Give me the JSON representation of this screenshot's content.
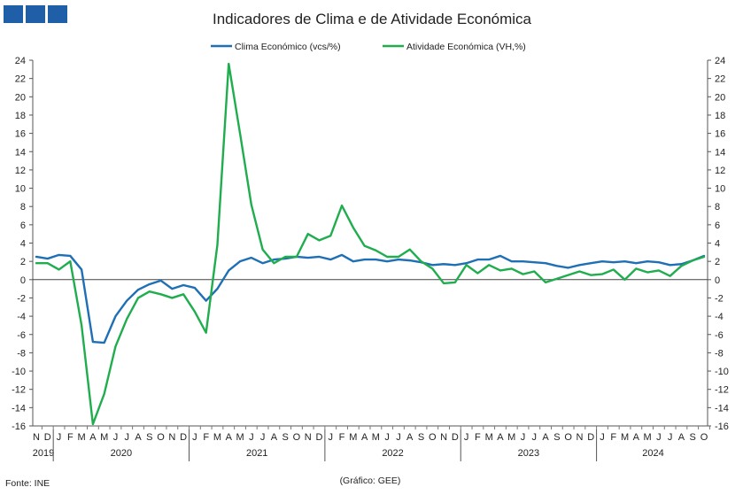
{
  "chart_data": {
    "type": "line",
    "title": "Indicadores de Clima e de Atividade Económica",
    "source": "Fonte: INE",
    "credit": "(Gráfico: GEE)",
    "ylim": [
      -16,
      24
    ],
    "yticks": [
      -16,
      -14,
      -12,
      -10,
      -8,
      -6,
      -4,
      -2,
      0,
      2,
      4,
      6,
      8,
      10,
      12,
      14,
      16,
      18,
      20,
      22,
      24
    ],
    "month_labels": [
      "N",
      "D",
      "J",
      "F",
      "M",
      "A",
      "M",
      "J",
      "J",
      "A",
      "S",
      "O",
      "N",
      "D",
      "J",
      "F",
      "M",
      "A",
      "M",
      "J",
      "J",
      "A",
      "S",
      "O",
      "N",
      "D",
      "J",
      "F",
      "M",
      "A",
      "M",
      "J",
      "J",
      "A",
      "S",
      "O",
      "N",
      "D",
      "J",
      "F",
      "M",
      "A",
      "M",
      "J",
      "J",
      "A",
      "S",
      "O",
      "N",
      "D",
      "J",
      "F",
      "M",
      "A",
      "M",
      "J",
      "J",
      "A",
      "S",
      "O"
    ],
    "years": [
      {
        "label": "2019",
        "start": 0,
        "end": 1
      },
      {
        "label": "2020",
        "start": 2,
        "end": 13
      },
      {
        "label": "2021",
        "start": 14,
        "end": 25
      },
      {
        "label": "2022",
        "start": 26,
        "end": 37
      },
      {
        "label": "2023",
        "start": 38,
        "end": 49
      },
      {
        "label": "2024",
        "start": 50,
        "end": 59
      }
    ],
    "series": [
      {
        "name": "Clima Económico (vcs/%)",
        "color": "#1f6fb5",
        "values": [
          2.5,
          2.3,
          2.7,
          2.6,
          1.1,
          -6.8,
          -6.9,
          -4.0,
          -2.3,
          -1.1,
          -0.5,
          -0.1,
          -1.0,
          -0.6,
          -0.9,
          -2.3,
          -1.0,
          1.0,
          2.0,
          2.4,
          1.8,
          2.2,
          2.3,
          2.5,
          2.4,
          2.5,
          2.2,
          2.7,
          2.0,
          2.2,
          2.2,
          2.0,
          2.2,
          2.1,
          1.9,
          1.6,
          1.7,
          1.6,
          1.8,
          2.2,
          2.2,
          2.6,
          2.0,
          2.0,
          1.9,
          1.8,
          1.5,
          1.3,
          1.6,
          1.8,
          2.0,
          1.9,
          2.0,
          1.8,
          2.0,
          1.9,
          1.6,
          1.7,
          2.1,
          2.6
        ]
      },
      {
        "name": "Atividade Económica (VH,%)",
        "color": "#1fad4e",
        "values": [
          1.8,
          1.8,
          1.1,
          2.0,
          -5.0,
          -15.8,
          -12.5,
          -7.3,
          -4.3,
          -2.0,
          -1.3,
          -1.6,
          -2.0,
          -1.6,
          -3.5,
          -5.8,
          3.8,
          23.6,
          16.0,
          8.2,
          3.3,
          1.8,
          2.5,
          2.5,
          5.0,
          4.3,
          4.8,
          8.1,
          5.7,
          3.7,
          3.2,
          2.5,
          2.5,
          3.3,
          2.0,
          1.2,
          -0.4,
          -0.3,
          1.6,
          0.7,
          1.6,
          1.0,
          1.2,
          0.6,
          0.9,
          -0.3,
          0.1,
          0.5,
          0.9,
          0.5,
          0.6,
          1.1,
          0.0,
          1.2,
          0.8,
          1.0,
          0.4,
          1.5,
          2.1,
          2.5
        ]
      }
    ]
  }
}
